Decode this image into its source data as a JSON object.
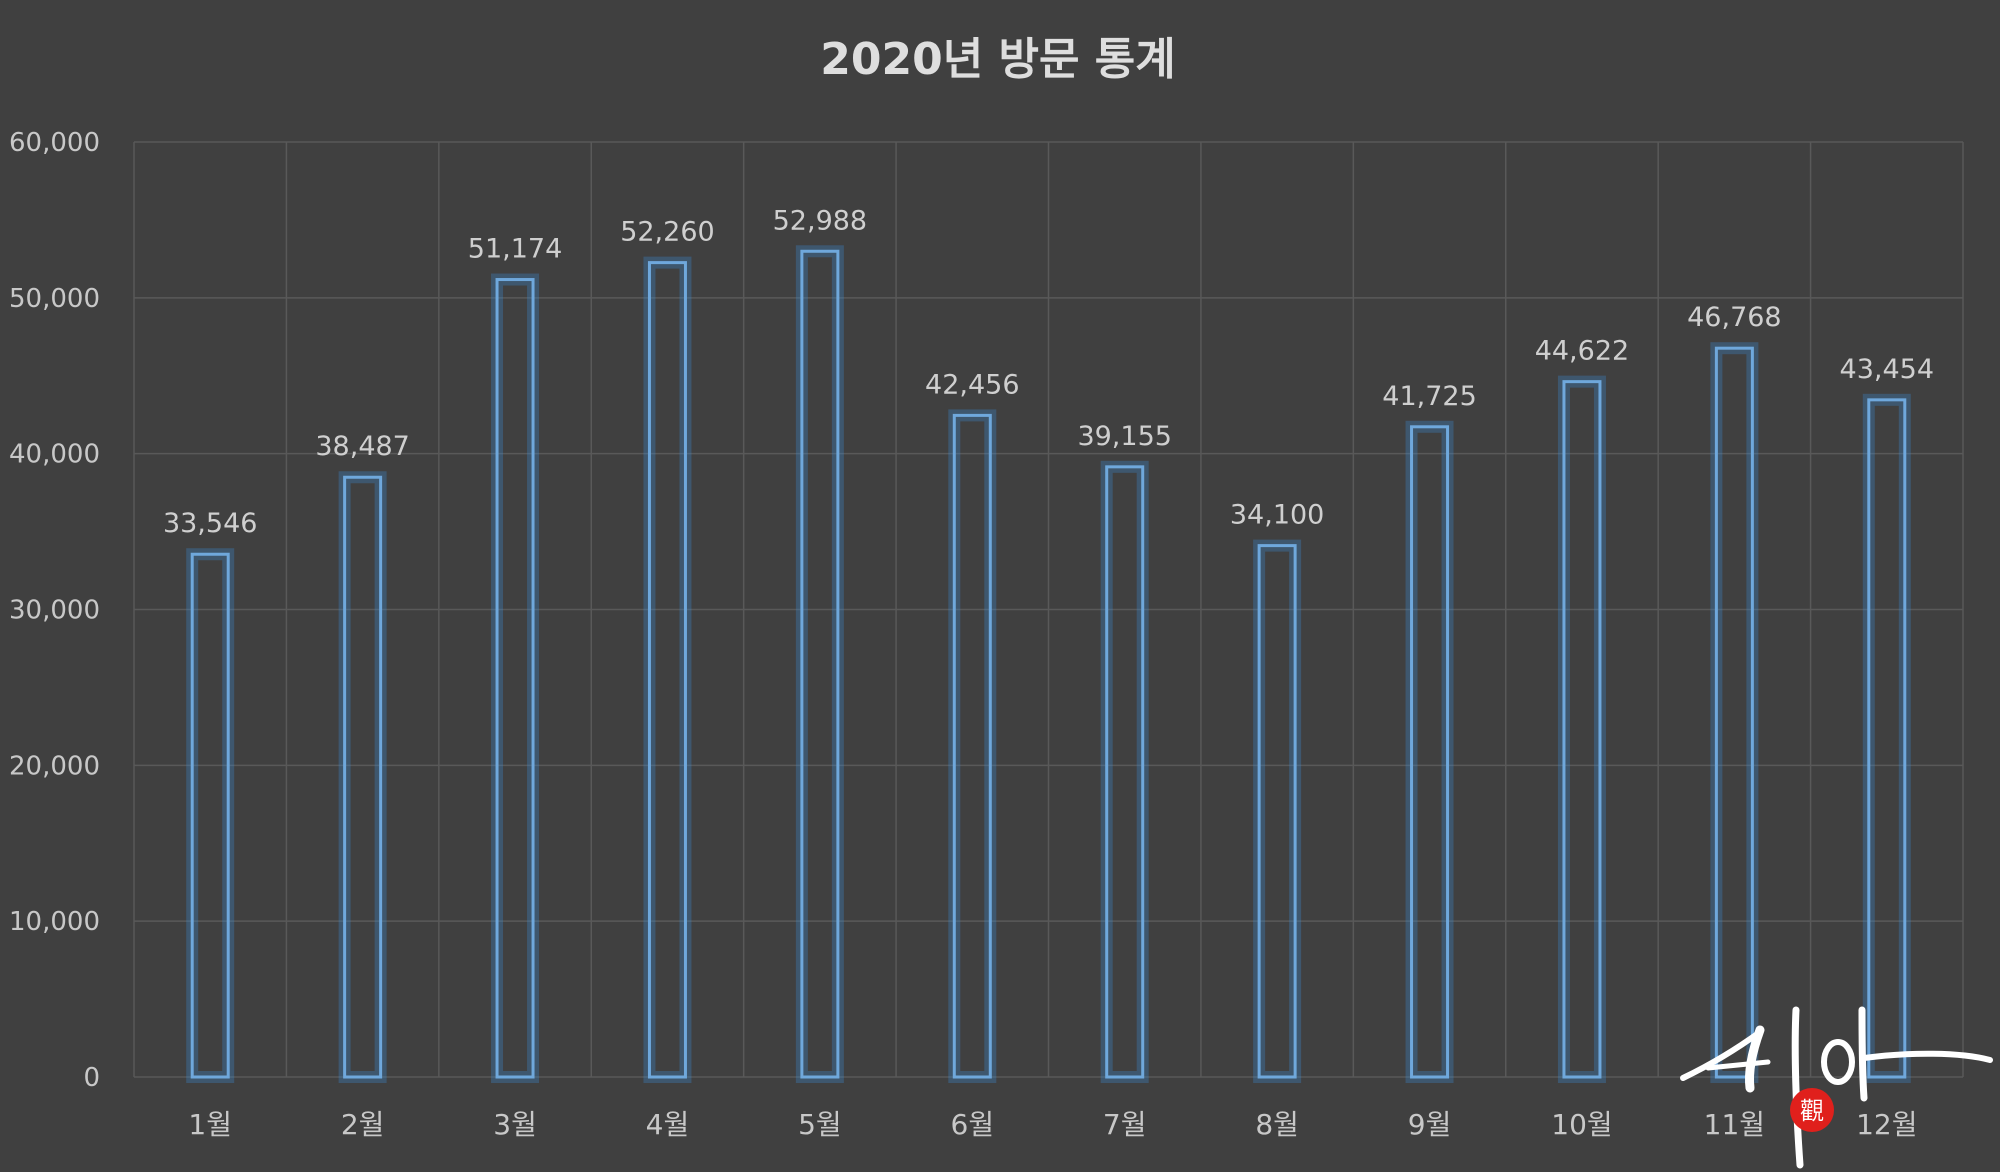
{
  "chart_data": {
    "type": "bar",
    "title": "2020년 방문 통계",
    "xlabel": "",
    "ylabel": "",
    "categories": [
      "1월",
      "2월",
      "3월",
      "4월",
      "5월",
      "6월",
      "7월",
      "8월",
      "9월",
      "10월",
      "11월",
      "12월"
    ],
    "values": [
      33546,
      38487,
      51174,
      52260,
      52988,
      42456,
      39155,
      34100,
      41725,
      44622,
      46768,
      43454
    ],
    "value_labels": [
      "33,546",
      "38,487",
      "51,174",
      "52,260",
      "52,988",
      "42,456",
      "39,155",
      "34,100",
      "41,725",
      "44,622",
      "46,768",
      "43,454"
    ],
    "ylim": [
      0,
      60000
    ],
    "yticks": [
      0,
      10000,
      20000,
      30000,
      40000,
      50000,
      60000
    ],
    "ytick_labels": [
      "0",
      "10,000",
      "20,000",
      "30,000",
      "40,000",
      "50,000",
      "60,000"
    ],
    "grid": true,
    "legend": "none",
    "colors": {
      "background": "#404040",
      "bar_outline": "#6fa8dc",
      "bar_glow": "#3d85c6",
      "grid": "#595959",
      "text": "#cfcfcf",
      "watermark_seal": "#e0201c"
    }
  },
  "watermark": {
    "text": "시아",
    "seal_text": "觀"
  }
}
